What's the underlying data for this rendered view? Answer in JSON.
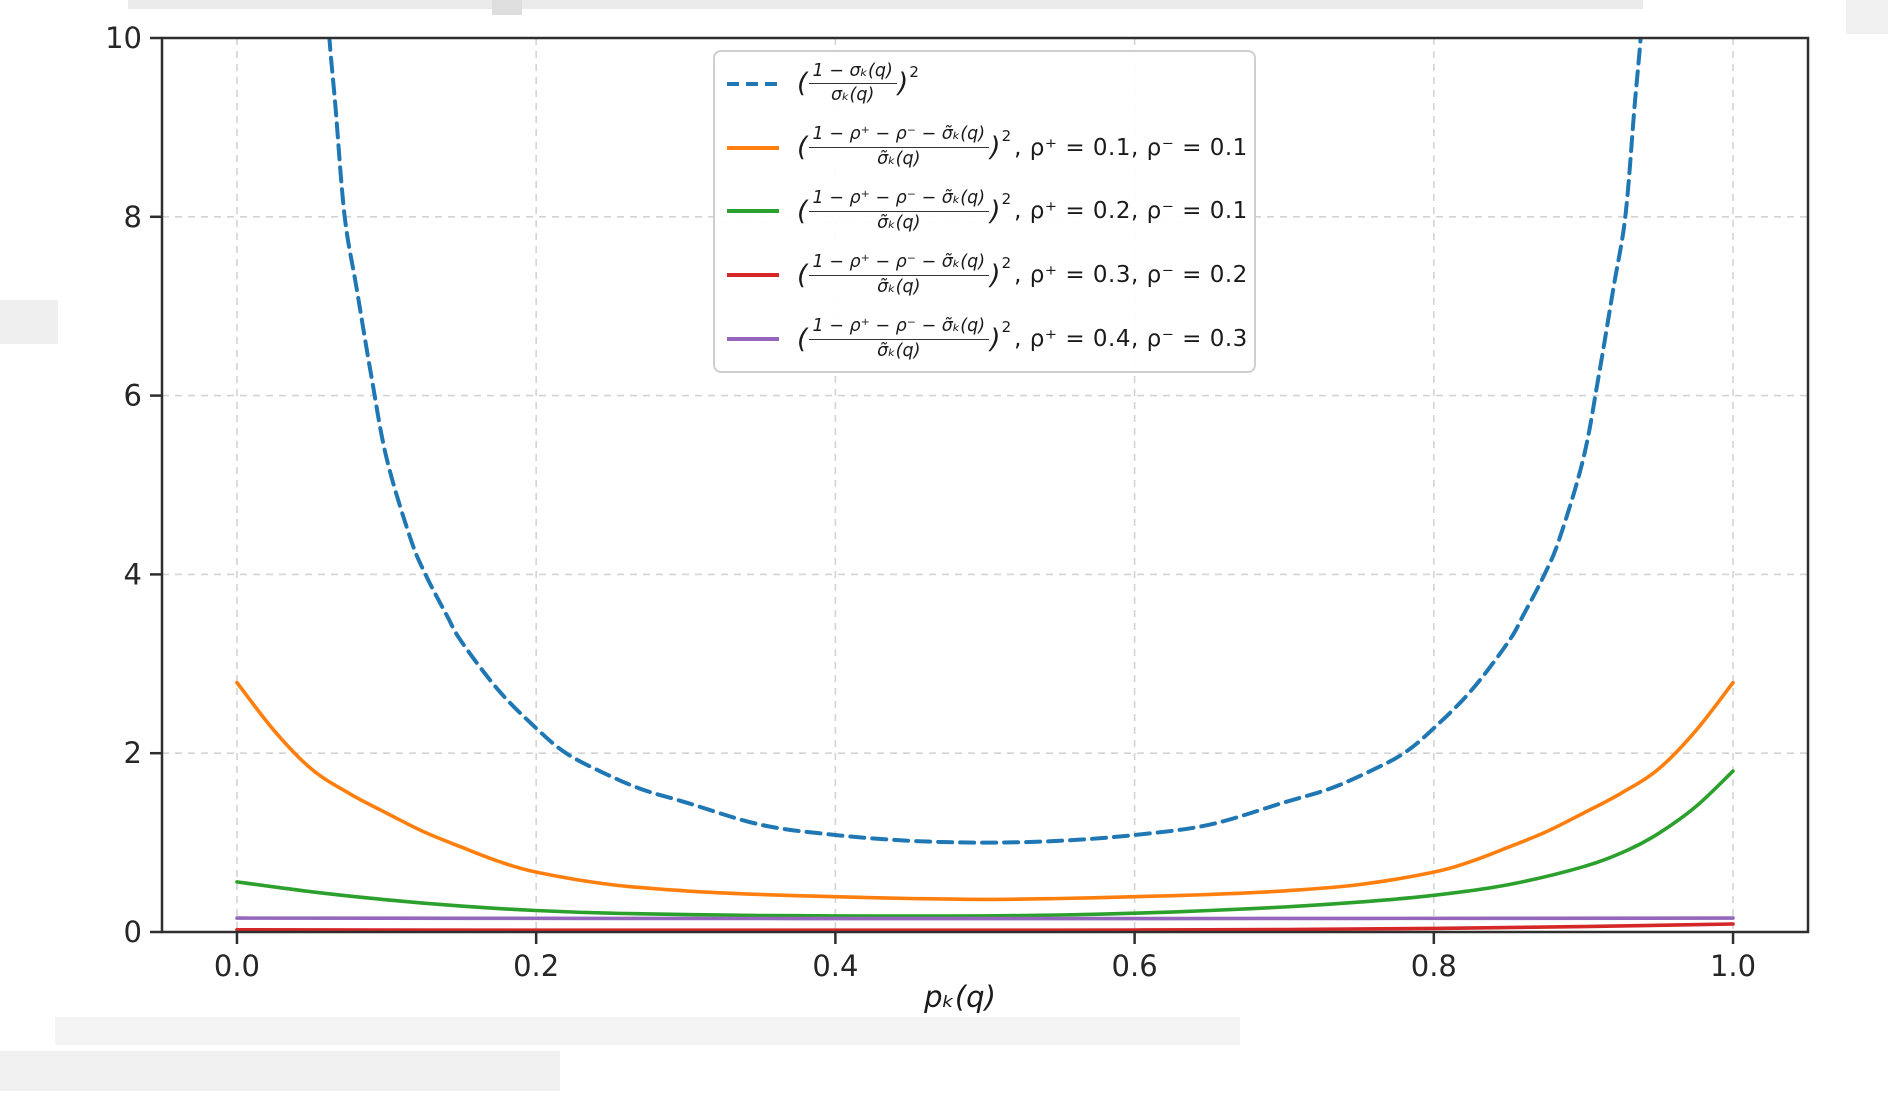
{
  "math": {
    "lparen": "(",
    "rparen": ")",
    "exp": "2"
  },
  "xaxis": {
    "label": "pₖ(q)"
  },
  "legend": {
    "position": "upper center",
    "items": [
      {
        "color": "#1f77b4",
        "dashed": true,
        "num": "1 − σₖ(q)",
        "den": "σₖ(q)",
        "suffix": ""
      },
      {
        "color": "#ff7f0e",
        "dashed": false,
        "num": "1 − ρ⁺ − ρ⁻ − σ̃ₖ(q)",
        "den": "σ̃ₖ(q)",
        "suffix": ",  ρ⁺ = 0.1, ρ⁻ = 0.1"
      },
      {
        "color": "#2ca02c",
        "dashed": false,
        "num": "1 − ρ⁺ − ρ⁻ − σ̃ₖ(q)",
        "den": "σ̃ₖ(q)",
        "suffix": ",  ρ⁺ = 0.2, ρ⁻ = 0.1"
      },
      {
        "color": "#d62728",
        "dashed": false,
        "num": "1 − ρ⁺ − ρ⁻ − σ̃ₖ(q)",
        "den": "σ̃ₖ(q)",
        "suffix": ",  ρ⁺ = 0.3, ρ⁻ = 0.2"
      },
      {
        "color": "#9467bd",
        "dashed": false,
        "num": "1 − ρ⁺ − ρ⁻ − σ̃ₖ(q)",
        "den": "σ̃ₖ(q)",
        "suffix": ",  ρ⁺ = 0.4, ρ⁻ = 0.3"
      }
    ]
  },
  "chart_data": {
    "type": "line",
    "title": "",
    "xlabel": "pₖ(q)",
    "ylabel": "",
    "xlim": [
      -0.0501,
      1.0501
    ],
    "ylim": [
      0,
      10
    ],
    "grid": true,
    "grid_style": "dashed",
    "legend_position": "upper center",
    "x_ticks": {
      "values": [
        0.0,
        0.2,
        0.4,
        0.6,
        0.8,
        1.0
      ],
      "labels": [
        "0.0",
        "0.2",
        "0.4",
        "0.6",
        "0.8",
        "1.0"
      ]
    },
    "y_ticks": {
      "values": [
        0,
        2,
        4,
        6,
        8,
        10
      ],
      "labels": [
        "0",
        "2",
        "4",
        "6",
        "8",
        "10"
      ]
    },
    "series": [
      {
        "name": "((1−σₖ(q))/σₖ(q))²",
        "color": "#1f77b4",
        "dashed": true,
        "rho_plus": null,
        "rho_minus": null,
        "points": [
          [
            0.058,
            11.5
          ],
          [
            0.061,
            10.2
          ],
          [
            0.066,
            9.2
          ],
          [
            0.072,
            8.0
          ],
          [
            0.08,
            7.2
          ],
          [
            0.09,
            6.2
          ],
          [
            0.1,
            5.3
          ],
          [
            0.116,
            4.4
          ],
          [
            0.126,
            4.0
          ],
          [
            0.14,
            3.55
          ],
          [
            0.15,
            3.25
          ],
          [
            0.175,
            2.7
          ],
          [
            0.2,
            2.28
          ],
          [
            0.22,
            2.0
          ],
          [
            0.245,
            1.78
          ],
          [
            0.27,
            1.6
          ],
          [
            0.3,
            1.45
          ],
          [
            0.35,
            1.2
          ],
          [
            0.4,
            1.085
          ],
          [
            0.45,
            1.02
          ],
          [
            0.5,
            1.0
          ],
          [
            0.55,
            1.02
          ],
          [
            0.6,
            1.085
          ],
          [
            0.65,
            1.2
          ],
          [
            0.7,
            1.45
          ],
          [
            0.73,
            1.6
          ],
          [
            0.755,
            1.78
          ],
          [
            0.78,
            2.0
          ],
          [
            0.8,
            2.28
          ],
          [
            0.825,
            2.7
          ],
          [
            0.85,
            3.25
          ],
          [
            0.86,
            3.55
          ],
          [
            0.874,
            4.0
          ],
          [
            0.884,
            4.4
          ],
          [
            0.9,
            5.3
          ],
          [
            0.91,
            6.2
          ],
          [
            0.92,
            7.2
          ],
          [
            0.928,
            8.0
          ],
          [
            0.934,
            9.2
          ],
          [
            0.939,
            10.2
          ],
          [
            0.942,
            11.5
          ]
        ]
      },
      {
        "name": "((1−ρ⁺−ρ⁻−σ̃ₖ(q))/σ̃ₖ(q))², ρ⁺=0.1, ρ⁻=0.1",
        "color": "#ff7f0e",
        "dashed": false,
        "rho_plus": 0.1,
        "rho_minus": 0.1,
        "points": [
          [
            0.0,
            2.79
          ],
          [
            0.025,
            2.25
          ],
          [
            0.05,
            1.82
          ],
          [
            0.075,
            1.55
          ],
          [
            0.1,
            1.33
          ],
          [
            0.125,
            1.12
          ],
          [
            0.15,
            0.95
          ],
          [
            0.175,
            0.79
          ],
          [
            0.2,
            0.67
          ],
          [
            0.25,
            0.53
          ],
          [
            0.3,
            0.46
          ],
          [
            0.35,
            0.42
          ],
          [
            0.4,
            0.395
          ],
          [
            0.45,
            0.375
          ],
          [
            0.5,
            0.365
          ],
          [
            0.55,
            0.375
          ],
          [
            0.6,
            0.395
          ],
          [
            0.65,
            0.42
          ],
          [
            0.7,
            0.46
          ],
          [
            0.75,
            0.53
          ],
          [
            0.8,
            0.67
          ],
          [
            0.825,
            0.79
          ],
          [
            0.85,
            0.95
          ],
          [
            0.875,
            1.12
          ],
          [
            0.9,
            1.33
          ],
          [
            0.925,
            1.55
          ],
          [
            0.95,
            1.82
          ],
          [
            0.975,
            2.25
          ],
          [
            1.0,
            2.79
          ]
        ]
      },
      {
        "name": "((1−ρ⁺−ρ⁻−σ̃ₖ(q))/σ̃ₖ(q))², ρ⁺=0.2, ρ⁻=0.1",
        "color": "#2ca02c",
        "dashed": false,
        "rho_plus": 0.2,
        "rho_minus": 0.1,
        "points": [
          [
            0.0,
            0.56
          ],
          [
            0.05,
            0.45
          ],
          [
            0.1,
            0.36
          ],
          [
            0.15,
            0.29
          ],
          [
            0.2,
            0.24
          ],
          [
            0.25,
            0.21
          ],
          [
            0.3,
            0.195
          ],
          [
            0.35,
            0.185
          ],
          [
            0.4,
            0.18
          ],
          [
            0.45,
            0.178
          ],
          [
            0.5,
            0.18
          ],
          [
            0.55,
            0.19
          ],
          [
            0.6,
            0.21
          ],
          [
            0.65,
            0.24
          ],
          [
            0.7,
            0.28
          ],
          [
            0.75,
            0.335
          ],
          [
            0.8,
            0.41
          ],
          [
            0.85,
            0.53
          ],
          [
            0.9,
            0.73
          ],
          [
            0.93,
            0.92
          ],
          [
            0.95,
            1.1
          ],
          [
            0.975,
            1.4
          ],
          [
            1.0,
            1.8
          ]
        ]
      },
      {
        "name": "((1−ρ⁺−ρ⁻−σ̃ₖ(q))/σ̃ₖ(q))², ρ⁺=0.3, ρ⁻=0.2",
        "color": "#d62728",
        "dashed": false,
        "rho_plus": 0.3,
        "rho_minus": 0.2,
        "points": [
          [
            0.0,
            0.025
          ],
          [
            0.1,
            0.022
          ],
          [
            0.2,
            0.02
          ],
          [
            0.3,
            0.02
          ],
          [
            0.4,
            0.02
          ],
          [
            0.5,
            0.02
          ],
          [
            0.6,
            0.022
          ],
          [
            0.7,
            0.028
          ],
          [
            0.8,
            0.04
          ],
          [
            0.9,
            0.06
          ],
          [
            0.95,
            0.075
          ],
          [
            1.0,
            0.09
          ]
        ]
      },
      {
        "name": "((1−ρ⁺−ρ⁻−σ̃ₖ(q))/σ̃ₖ(q))², ρ⁺=0.4, ρ⁻=0.3",
        "color": "#9467bd",
        "dashed": false,
        "rho_plus": 0.4,
        "rho_minus": 0.3,
        "points": [
          [
            0.0,
            0.155
          ],
          [
            0.25,
            0.152
          ],
          [
            0.5,
            0.15
          ],
          [
            0.75,
            0.152
          ],
          [
            1.0,
            0.155
          ]
        ]
      }
    ]
  }
}
